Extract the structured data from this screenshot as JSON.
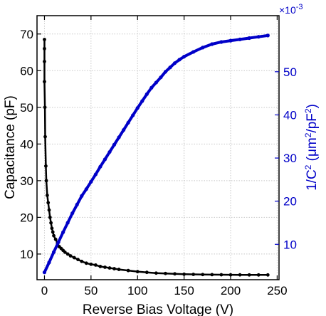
{
  "chart_data": {
    "type": "scatter",
    "title": "",
    "xlabel": "Reverse Bias Voltage (V)",
    "ylabel_left": "Capacitance (pF)",
    "ylabel_right_prefix": "1/C",
    "ylabel_right_sup1": "2",
    "ylabel_right_mid": " (μm",
    "ylabel_right_sup2": "2",
    "ylabel_right_mid2": "/pF",
    "ylabel_right_sup3": "2",
    "ylabel_right_suffix": ")",
    "right_axis_multiplier": "×10",
    "right_axis_multiplier_exp": "-3",
    "xlim": [
      -8,
      252
    ],
    "ylim_left": [
      3,
      75
    ],
    "ylim_right": [
      1.8,
      63
    ],
    "x_ticks": [
      0,
      50,
      100,
      150,
      200,
      250
    ],
    "y_left_ticks": [
      10,
      20,
      30,
      40,
      50,
      60,
      70
    ],
    "y_right_ticks": [
      10,
      20,
      30,
      40,
      50
    ],
    "grid": true,
    "legend": "none",
    "colors": {
      "capacitance": "#000000",
      "inverse_c2": "#0000c8",
      "grid": "#c8c8c8"
    },
    "series": [
      {
        "axis": "left",
        "color": "#000000",
        "points": [
          [
            0,
            68.5
          ],
          [
            0,
            66
          ],
          [
            0,
            62.5
          ],
          [
            0,
            57
          ],
          [
            0.5,
            50
          ],
          [
            0.8,
            42
          ],
          [
            1.5,
            34
          ],
          [
            2,
            30
          ],
          [
            3,
            26
          ],
          [
            4,
            24
          ],
          [
            5,
            22
          ],
          [
            6,
            20
          ],
          [
            7,
            18.5
          ],
          [
            8,
            17
          ],
          [
            9,
            16
          ],
          [
            10,
            15
          ],
          [
            12,
            14
          ],
          [
            14,
            13
          ],
          [
            16,
            12
          ],
          [
            18,
            11.5
          ],
          [
            20,
            11
          ],
          [
            22,
            10.5
          ],
          [
            25,
            10
          ],
          [
            28,
            9.5
          ],
          [
            32,
            9
          ],
          [
            36,
            8.5
          ],
          [
            40,
            8
          ],
          [
            45,
            7.5
          ],
          [
            50,
            7.2
          ],
          [
            55,
            7
          ],
          [
            60,
            6.6
          ],
          [
            65,
            6.4
          ],
          [
            70,
            6.2
          ],
          [
            75,
            6
          ],
          [
            80,
            5.8
          ],
          [
            90,
            5.5
          ],
          [
            100,
            5.2
          ],
          [
            110,
            5
          ],
          [
            120,
            4.8
          ],
          [
            130,
            4.7
          ],
          [
            140,
            4.6
          ],
          [
            150,
            4.5
          ],
          [
            160,
            4.45
          ],
          [
            170,
            4.4
          ],
          [
            180,
            4.38
          ],
          [
            190,
            4.35
          ],
          [
            200,
            4.33
          ],
          [
            210,
            4.32
          ],
          [
            220,
            4.31
          ],
          [
            230,
            4.3
          ],
          [
            240,
            4.3
          ]
        ]
      },
      {
        "axis": "right",
        "color": "#0000c8",
        "points": [
          [
            0,
            3.5
          ],
          [
            5,
            5.8
          ],
          [
            10,
            8.2
          ],
          [
            15,
            10.5
          ],
          [
            20,
            12.8
          ],
          [
            25,
            15
          ],
          [
            30,
            17.2
          ],
          [
            35,
            19.2
          ],
          [
            40,
            21.2
          ],
          [
            45,
            22.8
          ],
          [
            50,
            24.5
          ],
          [
            55,
            26.2
          ],
          [
            60,
            28
          ],
          [
            65,
            29.7
          ],
          [
            70,
            31.4
          ],
          [
            75,
            33.1
          ],
          [
            80,
            34.8
          ],
          [
            85,
            36.5
          ],
          [
            90,
            38.2
          ],
          [
            95,
            39.9
          ],
          [
            100,
            41.6
          ],
          [
            105,
            43.2
          ],
          [
            110,
            44.8
          ],
          [
            115,
            46.3
          ],
          [
            120,
            47.5
          ],
          [
            125,
            48.7
          ],
          [
            130,
            50
          ],
          [
            135,
            51
          ],
          [
            140,
            52
          ],
          [
            145,
            52.8
          ],
          [
            150,
            53.5
          ],
          [
            160,
            54.6
          ],
          [
            170,
            55.6
          ],
          [
            180,
            56.4
          ],
          [
            190,
            56.9
          ],
          [
            200,
            57.2
          ],
          [
            210,
            57.5
          ],
          [
            220,
            57.8
          ],
          [
            230,
            58.1
          ],
          [
            240,
            58.4
          ]
        ]
      }
    ]
  }
}
